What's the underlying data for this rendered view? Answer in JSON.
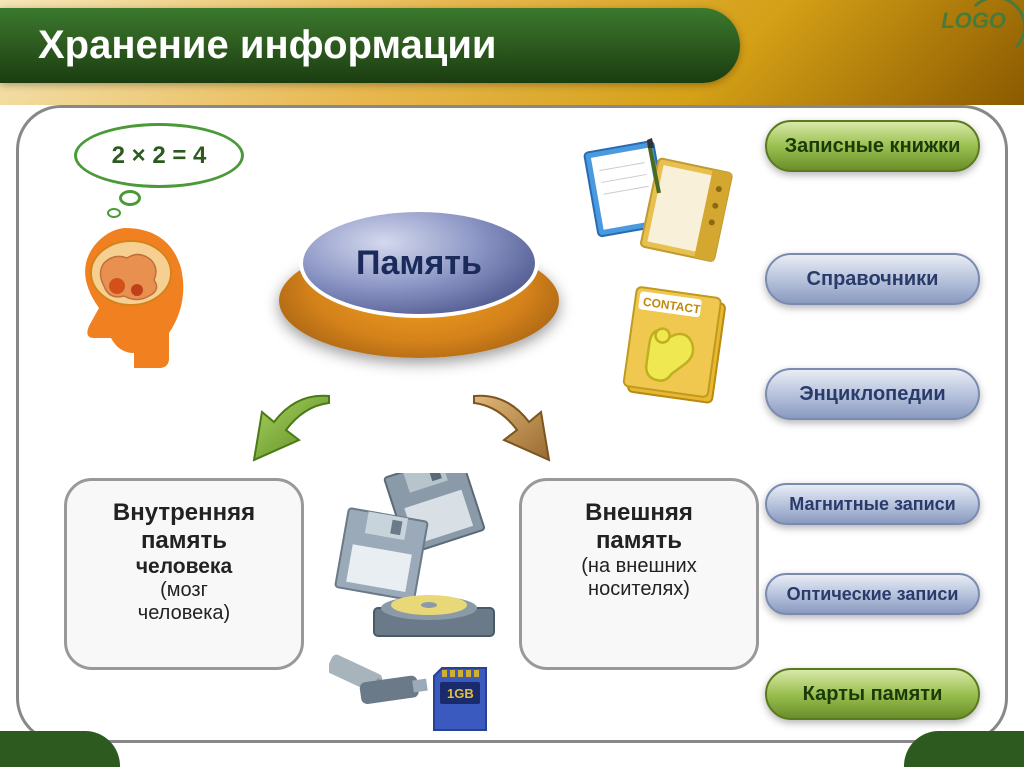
{
  "title": "Хранение информации",
  "logo": "LOGO",
  "bubble_equation": "2 × 2 = 4",
  "central_button": "Память",
  "internal_memory": {
    "line1": "Внутренняя",
    "line2": "память",
    "line3": "человека",
    "line4": "(мозг",
    "line5": "человека)"
  },
  "external_memory": {
    "line1": "Внешняя",
    "line2": "память",
    "line3": "(на внешних",
    "line4": "носителях)"
  },
  "pills": [
    {
      "label": "Записные книжки",
      "style": "green",
      "slim": false
    },
    {
      "label": "Справочники",
      "style": "blue",
      "slim": false
    },
    {
      "label": "Энциклопедии",
      "style": "blue",
      "slim": false
    },
    {
      "label": "Магнитные записи",
      "style": "blue",
      "slim": true
    },
    {
      "label": "Оптические записи",
      "style": "blue",
      "slim": true
    },
    {
      "label": "Карты памяти",
      "style": "green",
      "slim": false
    }
  ],
  "pill_positions_top": [
    12,
    145,
    260,
    375,
    465,
    560
  ],
  "colors": {
    "header_green": "#2d5a1f",
    "pill_green_top": "#d8e8a8",
    "pill_green_bottom": "#6a8f2a",
    "pill_blue_top": "#e8ecf5",
    "pill_blue_bottom": "#8a9ac0",
    "button_base": "#d4821a",
    "button_top": "#8b95c4",
    "head_orange": "#f08020",
    "arrow_green": "#7aaa3a",
    "arrow_brown": "#c08a4a",
    "frame_border": "#888888",
    "background": "#ffffff"
  }
}
